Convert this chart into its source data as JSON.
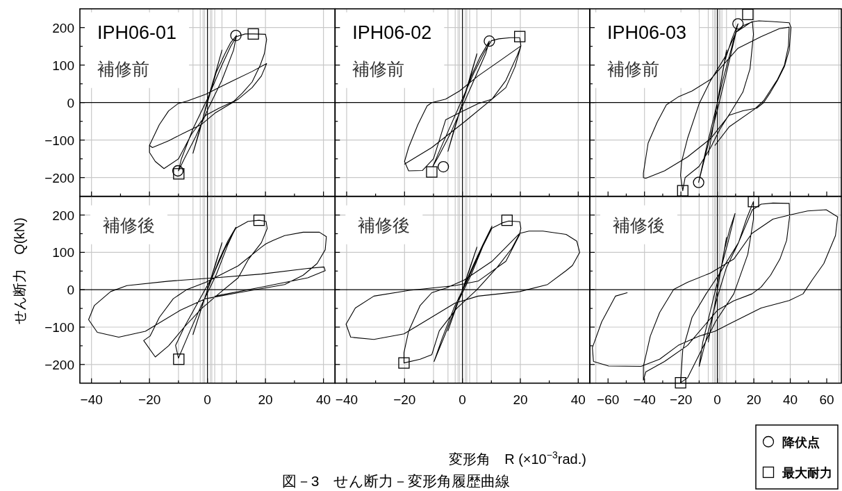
{
  "chart_data": [
    {
      "type": "line",
      "title": "IPH06-01",
      "ylabel": "せん断力　Q(kN)",
      "annotations": [
        "補修前"
      ],
      "xlim": [
        -44,
        44
      ],
      "ylim": [
        -250,
        250
      ],
      "xticks": [
        -40,
        {
          "value": -30,
          "label": null
        },
        -20,
        {
          "value": -10,
          "label": null
        },
        0,
        {
          "value": 10,
          "label": null
        },
        20,
        {
          "value": 30,
          "label": null
        },
        40
      ],
      "yticks": [
        -200,
        {
          "value": -150,
          "label": null
        },
        -100,
        {
          "value": -50,
          "label": null
        },
        0,
        {
          "value": 50,
          "label": null
        },
        100,
        {
          "value": 150,
          "label": null
        },
        200
      ],
      "tick_labels": "y",
      "ref_lines": [
        {
          "axis": "y",
          "value": -200,
          "color": "#c8c8c8"
        },
        {
          "axis": "y",
          "value": -100,
          "color": "#c8c8c8"
        },
        {
          "axis": "y",
          "value": 100,
          "color": "#c8c8c8"
        },
        {
          "axis": "y",
          "value": 200,
          "color": "#c8c8c8"
        },
        {
          "axis": "x",
          "value": -40,
          "color": "#c8c8c8"
        },
        {
          "axis": "x",
          "value": -20,
          "color": "#c8c8c8"
        },
        {
          "axis": "x",
          "value": -10,
          "color": "#c8c8c8"
        },
        {
          "axis": "x",
          "value": -5,
          "color": "#c8c8c8"
        },
        {
          "axis": "x",
          "value": -2.5,
          "color": "#c8c8c8"
        },
        {
          "axis": "x",
          "value": -1.5,
          "color": "#c8c8c8"
        },
        {
          "axis": "x",
          "value": -1,
          "color": "#c8c8c8"
        },
        {
          "axis": "x",
          "value": 1,
          "color": "#c8c8c8"
        },
        {
          "axis": "x",
          "value": 1.5,
          "color": "#c8c8c8"
        },
        {
          "axis": "x",
          "value": 2.5,
          "color": "#c8c8c8"
        },
        {
          "axis": "x",
          "value": 5,
          "color": "#c8c8c8"
        },
        {
          "axis": "x",
          "value": 10,
          "color": "#c8c8c8"
        },
        {
          "axis": "x",
          "value": 20,
          "color": "#c8c8c8"
        },
        {
          "axis": "x",
          "value": 40,
          "color": "#c8c8c8"
        },
        {
          "axis": "x",
          "value": 0,
          "color": "#000000"
        },
        {
          "axis": "y",
          "value": 0,
          "color": "#000000"
        }
      ],
      "series": [
        {
          "type": "line",
          "color": "#000000",
          "x": [
            0,
            2.5,
            5,
            3,
            0,
            -2.5,
            -5,
            -3,
            0,
            3,
            6,
            8,
            10,
            9,
            5,
            0,
            -4,
            -8,
            -10,
            -9,
            -5,
            0,
            5,
            8,
            10,
            13,
            16,
            20,
            20.4,
            19.6,
            18.2,
            15.4,
            12,
            9,
            4,
            -0.6,
            -5.4,
            -10,
            -15,
            -18,
            -20,
            -20,
            -16.6,
            -13.4,
            -10.2,
            -7,
            -0.6,
            4,
            9,
            15.4,
            20.4,
            18.6,
            15.4,
            10.6,
            2.6,
            -2.2,
            -8.6,
            -13.4,
            -19,
            -20
          ],
          "values": [
            0,
            70,
            140,
            85,
            5,
            -70,
            -135,
            -80,
            0,
            80,
            130,
            160,
            179,
            140,
            60,
            -20,
            -90,
            -150,
            -182,
            -150,
            -70,
            10,
            100,
            150,
            176,
            183,
            183,
            182,
            168,
            130,
            100,
            55,
            25,
            3,
            -15,
            -34,
            -83,
            -150,
            -176,
            -157,
            -133,
            -114,
            -59,
            -22,
            -3,
            4,
            22,
            40,
            59,
            83,
            104,
            71,
            40,
            9,
            -28,
            -59,
            -83,
            -102,
            -120,
            -114
          ]
        },
        {
          "type": "scatter",
          "marker": "circle",
          "color": "#000000",
          "x": [
            9.8,
            -10.2
          ],
          "values": [
            179,
            -182
          ]
        },
        {
          "type": "scatter",
          "marker": "square",
          "color": "#000000",
          "x": [
            15.8,
            -9.9
          ],
          "values": [
            183,
            -190
          ]
        }
      ]
    },
    {
      "type": "line",
      "title": "IPH06-02",
      "annotations": [
        "補修前"
      ],
      "xlim": [
        -44,
        44
      ],
      "ylim": [
        -250,
        250
      ],
      "xticks": [
        -40,
        {
          "value": -30,
          "label": null
        },
        -20,
        {
          "value": -10,
          "label": null
        },
        0,
        {
          "value": 10,
          "label": null
        },
        20,
        {
          "value": 30,
          "label": null
        },
        40
      ],
      "yticks": [
        -200,
        {
          "value": -150,
          "label": null
        },
        -100,
        {
          "value": -50,
          "label": null
        },
        0,
        {
          "value": 50,
          "label": null
        },
        100,
        {
          "value": 150,
          "label": null
        },
        200
      ],
      "tick_labels": false,
      "ref_lines": [
        {
          "axis": "y",
          "value": -200,
          "color": "#c8c8c8"
        },
        {
          "axis": "y",
          "value": -100,
          "color": "#c8c8c8"
        },
        {
          "axis": "y",
          "value": 100,
          "color": "#c8c8c8"
        },
        {
          "axis": "y",
          "value": 200,
          "color": "#c8c8c8"
        },
        {
          "axis": "x",
          "value": -40,
          "color": "#c8c8c8"
        },
        {
          "axis": "x",
          "value": -20,
          "color": "#c8c8c8"
        },
        {
          "axis": "x",
          "value": -10,
          "color": "#c8c8c8"
        },
        {
          "axis": "x",
          "value": -5,
          "color": "#c8c8c8"
        },
        {
          "axis": "x",
          "value": -2.5,
          "color": "#c8c8c8"
        },
        {
          "axis": "x",
          "value": -1.5,
          "color": "#c8c8c8"
        },
        {
          "axis": "x",
          "value": -1,
          "color": "#c8c8c8"
        },
        {
          "axis": "x",
          "value": 1,
          "color": "#c8c8c8"
        },
        {
          "axis": "x",
          "value": 1.5,
          "color": "#c8c8c8"
        },
        {
          "axis": "x",
          "value": 2.5,
          "color": "#c8c8c8"
        },
        {
          "axis": "x",
          "value": 5,
          "color": "#c8c8c8"
        },
        {
          "axis": "x",
          "value": 10,
          "color": "#c8c8c8"
        },
        {
          "axis": "x",
          "value": 20,
          "color": "#c8c8c8"
        },
        {
          "axis": "x",
          "value": 40,
          "color": "#c8c8c8"
        },
        {
          "axis": "x",
          "value": 0,
          "color": "#000000"
        },
        {
          "axis": "y",
          "value": 0,
          "color": "#000000"
        }
      ],
      "series": [
        {
          "type": "line",
          "color": "#000000",
          "x": [
            0,
            2.5,
            5,
            3,
            0,
            -2.5,
            -5,
            -3,
            0,
            3,
            6,
            9.3,
            8,
            4,
            0,
            -4,
            -8,
            -10.2,
            -8,
            -4,
            0,
            4,
            8,
            10,
            12.6,
            16.6,
            19.8,
            20.2,
            18.2,
            15,
            10.2,
            5.4,
            -0.5,
            -5.8,
            -10,
            -13.8,
            -18.6,
            -20,
            -18.6,
            -15.4,
            -12.2,
            -10.6,
            -5.8,
            -1,
            5.4,
            13.4,
            20.2,
            19,
            15,
            10.2,
            0.6,
            -10.6,
            -20
          ],
          "values": [
            0,
            65,
            130,
            75,
            0,
            -65,
            -130,
            -75,
            0,
            70,
            120,
            164,
            130,
            60,
            -10,
            -80,
            -140,
            -170,
            -130,
            -60,
            10,
            80,
            140,
            165,
            170,
            173,
            173,
            151,
            96,
            40,
            9,
            -3,
            -25,
            -46,
            -150,
            -181,
            -182,
            -157,
            -120,
            -59,
            -9,
            0,
            9,
            31,
            71,
            114,
            151,
            127,
            59,
            9,
            -52,
            -120,
            -164
          ]
        },
        {
          "type": "scatter",
          "marker": "circle",
          "color": "#000000",
          "x": [
            9.3,
            -6.6
          ],
          "values": [
            164,
            -171
          ]
        },
        {
          "type": "scatter",
          "marker": "square",
          "color": "#000000",
          "x": [
            19.8,
            -10.6
          ],
          "values": [
            176,
            -185
          ]
        }
      ]
    },
    {
      "type": "line",
      "title": "IPH06-03",
      "annotations": [
        "補修前"
      ],
      "xlim": [
        -70,
        68
      ],
      "ylim": [
        -250,
        250
      ],
      "xticks": [
        -60,
        {
          "value": -50,
          "label": null
        },
        -40,
        {
          "value": -30,
          "label": null
        },
        -20,
        {
          "value": -10,
          "label": null
        },
        0,
        {
          "value": 10,
          "label": null
        },
        20,
        {
          "value": 30,
          "label": null
        },
        40,
        {
          "value": 50,
          "label": null
        },
        60
      ],
      "yticks": [
        -200,
        {
          "value": -150,
          "label": null
        },
        -100,
        {
          "value": -50,
          "label": null
        },
        0,
        {
          "value": 50,
          "label": null
        },
        100,
        {
          "value": 150,
          "label": null
        },
        200
      ],
      "tick_labels": false,
      "legend": "bottom right",
      "ref_lines": [
        {
          "axis": "y",
          "value": -200,
          "color": "#c8c8c8"
        },
        {
          "axis": "y",
          "value": -100,
          "color": "#c8c8c8"
        },
        {
          "axis": "y",
          "value": 100,
          "color": "#c8c8c8"
        },
        {
          "axis": "y",
          "value": 200,
          "color": "#c8c8c8"
        },
        {
          "axis": "x",
          "value": -66.7,
          "color": "#c8c8c8"
        },
        {
          "axis": "x",
          "value": 66.7,
          "color": "#c8c8c8"
        },
        {
          "axis": "x",
          "value": -40,
          "color": "#c8c8c8"
        },
        {
          "axis": "x",
          "value": -20,
          "color": "#c8c8c8"
        },
        {
          "axis": "x",
          "value": -10,
          "color": "#c8c8c8"
        },
        {
          "axis": "x",
          "value": -5,
          "color": "#c8c8c8"
        },
        {
          "axis": "x",
          "value": -2.5,
          "color": "#c8c8c8"
        },
        {
          "axis": "x",
          "value": -1.5,
          "color": "#c8c8c8"
        },
        {
          "axis": "x",
          "value": -1,
          "color": "#c8c8c8"
        },
        {
          "axis": "x",
          "value": 1,
          "color": "#c8c8c8"
        },
        {
          "axis": "x",
          "value": 1.5,
          "color": "#c8c8c8"
        },
        {
          "axis": "x",
          "value": 2.5,
          "color": "#c8c8c8"
        },
        {
          "axis": "x",
          "value": 5,
          "color": "#c8c8c8"
        },
        {
          "axis": "x",
          "value": 10,
          "color": "#c8c8c8"
        },
        {
          "axis": "x",
          "value": 20,
          "color": "#c8c8c8"
        },
        {
          "axis": "x",
          "value": 40,
          "color": "#c8c8c8"
        },
        {
          "axis": "x",
          "value": 0,
          "color": "#000000"
        },
        {
          "axis": "y",
          "value": 0,
          "color": "#000000"
        }
      ],
      "series": [
        {
          "type": "line",
          "color": "#000000",
          "x": [
            0,
            2.5,
            5,
            2.5,
            0,
            -2.5,
            -5,
            -2.5,
            0,
            4,
            8,
            11.3,
            8,
            3,
            -2,
            -6,
            -10.3,
            -6,
            0,
            4,
            10.3,
            14,
            18,
            19.2,
            19.8,
            17.9,
            14,
            7.8,
            1.4,
            -3.7,
            -10,
            -17.7,
            -19,
            -20.2,
            -19.6,
            -16.4,
            -10,
            -3.7,
            4,
            10.3,
            18,
            20,
            22.8,
            30,
            39.4,
            40.4,
            39.4,
            36.8,
            33,
            29.2,
            25.4,
            21.6,
            14,
            6.4,
            -3.7,
            -16.4,
            -29,
            -39.3,
            -40.6,
            -40.6,
            -38,
            -33,
            -28,
            -21.5,
            -13.9,
            -3.7,
            11.3,
            24,
            34,
            39.4,
            39,
            36.8,
            33,
            25.4,
            20.3,
            6.4,
            -1.3
          ],
          "values": [
            0,
            70,
            140,
            70,
            0,
            -70,
            -140,
            -70,
            0,
            110,
            170,
            210,
            150,
            60,
            -40,
            -120,
            -213,
            -130,
            -20,
            60,
            188,
            205,
            213,
            216,
            182,
            90,
            28,
            -22,
            -71,
            -120,
            -170,
            -200,
            -235,
            -194,
            -157,
            -96,
            -3,
            59,
            120,
            188,
            213,
            216,
            218,
            216,
            213,
            200,
            140,
            96,
            59,
            28,
            0,
            -15,
            -22,
            -34,
            -96,
            -145,
            -182,
            -202,
            -200,
            -188,
            -108,
            -52,
            -6,
            15,
            31,
            62,
            145,
            176,
            197,
            201,
            151,
            100,
            62,
            5,
            -18,
            -65,
            -114
          ]
        },
        {
          "type": "scatter",
          "name": "降伏点",
          "marker": "circle",
          "color": "#000000",
          "x": [
            11.3,
            -10.3
          ],
          "values": [
            210,
            -213
          ]
        },
        {
          "type": "scatter",
          "name": "最大耐力",
          "marker": "square",
          "color": "#000000",
          "x": [
            16.7,
            -19
          ],
          "values": [
            235,
            -235
          ]
        }
      ]
    },
    {
      "type": "line",
      "annotations": [
        "補修後"
      ],
      "xlim": [
        -44,
        44
      ],
      "ylim": [
        -250,
        250
      ],
      "xticks": [
        -40,
        {
          "value": -30,
          "label": null
        },
        -20,
        {
          "value": -10,
          "label": null
        },
        0,
        {
          "value": 10,
          "label": null
        },
        20,
        {
          "value": 30,
          "label": null
        },
        40
      ],
      "yticks": [
        -200,
        {
          "value": -150,
          "label": null
        },
        -100,
        {
          "value": -50,
          "label": null
        },
        0,
        {
          "value": 50,
          "label": null
        },
        100,
        {
          "value": 150,
          "label": null
        },
        200
      ],
      "ref_lines": [
        {
          "axis": "y",
          "value": -200,
          "color": "#c8c8c8"
        },
        {
          "axis": "y",
          "value": -100,
          "color": "#c8c8c8"
        },
        {
          "axis": "y",
          "value": 100,
          "color": "#c8c8c8"
        },
        {
          "axis": "y",
          "value": 200,
          "color": "#c8c8c8"
        },
        {
          "axis": "x",
          "value": -40,
          "color": "#c8c8c8"
        },
        {
          "axis": "x",
          "value": -20,
          "color": "#c8c8c8"
        },
        {
          "axis": "x",
          "value": -10,
          "color": "#c8c8c8"
        },
        {
          "axis": "x",
          "value": -5,
          "color": "#c8c8c8"
        },
        {
          "axis": "x",
          "value": -2.5,
          "color": "#c8c8c8"
        },
        {
          "axis": "x",
          "value": -1.5,
          "color": "#c8c8c8"
        },
        {
          "axis": "x",
          "value": -1,
          "color": "#c8c8c8"
        },
        {
          "axis": "x",
          "value": 1,
          "color": "#c8c8c8"
        },
        {
          "axis": "x",
          "value": 1.5,
          "color": "#c8c8c8"
        },
        {
          "axis": "x",
          "value": 2.5,
          "color": "#c8c8c8"
        },
        {
          "axis": "x",
          "value": 5,
          "color": "#c8c8c8"
        },
        {
          "axis": "x",
          "value": 10,
          "color": "#c8c8c8"
        },
        {
          "axis": "x",
          "value": 20,
          "color": "#c8c8c8"
        },
        {
          "axis": "x",
          "value": 40,
          "color": "#c8c8c8"
        },
        {
          "axis": "x",
          "value": 0,
          "color": "#000000"
        },
        {
          "axis": "y",
          "value": 0,
          "color": "#000000"
        }
      ],
      "series": [
        {
          "type": "line",
          "color": "#000000",
          "x": [
            0,
            2.5,
            5,
            2.5,
            0,
            -2.5,
            -5,
            -2.5,
            0,
            4,
            7,
            9.8,
            7,
            3,
            -2,
            -6,
            -10,
            -11,
            -8,
            -3,
            2,
            6,
            9.8,
            14,
            17.8,
            20.2,
            20.6,
            18.6,
            14,
            10.6,
            4,
            -2,
            -8,
            -13.4,
            -18,
            -22,
            -19.8,
            -16.6,
            -11.8,
            -7,
            -0.6,
            10.6,
            18.6,
            20.2,
            22.6,
            26.6,
            33,
            38.6,
            41,
            40.6,
            37.8,
            33,
            26.6,
            10.6,
            -0.6,
            -9.4,
            -21.4,
            -30.6,
            -38,
            -41,
            -39,
            -33.4,
            -27.8,
            -13.4,
            2.6,
            18.6,
            34.6,
            40.2,
            40.6,
            34.6,
            18.6,
            2.6
          ],
          "values": [
            0,
            63,
            126,
            60,
            0,
            -60,
            -120,
            -60,
            0,
            80,
            130,
            167,
            120,
            40,
            -40,
            -110,
            -183,
            -149,
            -100,
            -30,
            40,
            110,
            165,
            183,
            186,
            183,
            164,
            126,
            80,
            32,
            -10,
            -50,
            -100,
            -150,
            -180,
            -136,
            -124,
            -74,
            -24,
            1,
            20,
            64,
            114,
            123,
            132,
            145,
            154,
            154,
            142,
            107,
            70,
            39,
            14,
            -8,
            -24,
            -55,
            -111,
            -127,
            -114,
            -80,
            -42,
            -5,
            11,
            23,
            32,
            42,
            57,
            61,
            51,
            32,
            7,
            -17
          ]
        },
        {
          "type": "scatter",
          "marker": "square",
          "color": "#000000",
          "x": [
            17.8,
            -9.9
          ],
          "values": [
            186,
            -186
          ]
        }
      ]
    },
    {
      "type": "line",
      "xlabel": "変形角　R (×10$^{−3}$rad.)",
      "annotations": [
        "補修後",
        "図－3　せん断力－変形角履歴曲線"
      ],
      "xlim": [
        -44,
        44
      ],
      "ylim": [
        -250,
        250
      ],
      "xticks": [
        -40,
        {
          "value": -30,
          "label": null
        },
        -20,
        {
          "value": -10,
          "label": null
        },
        0,
        {
          "value": 10,
          "label": null
        },
        20,
        {
          "value": 30,
          "label": null
        },
        40
      ],
      "yticks": [
        -200,
        {
          "value": -150,
          "label": null
        },
        -100,
        {
          "value": -50,
          "label": null
        },
        0,
        {
          "value": 50,
          "label": null
        },
        100,
        {
          "value": 150,
          "label": null
        },
        200
      ],
      "tick_labels": "x",
      "ref_lines": [
        {
          "axis": "y",
          "value": -200,
          "color": "#c8c8c8"
        },
        {
          "axis": "y",
          "value": -100,
          "color": "#c8c8c8"
        },
        {
          "axis": "y",
          "value": 100,
          "color": "#c8c8c8"
        },
        {
          "axis": "y",
          "value": 200,
          "color": "#c8c8c8"
        },
        {
          "axis": "x",
          "value": -40,
          "color": "#c8c8c8"
        },
        {
          "axis": "x",
          "value": -20,
          "color": "#c8c8c8"
        },
        {
          "axis": "x",
          "value": -10,
          "color": "#c8c8c8"
        },
        {
          "axis": "x",
          "value": -5,
          "color": "#c8c8c8"
        },
        {
          "axis": "x",
          "value": -2.5,
          "color": "#c8c8c8"
        },
        {
          "axis": "x",
          "value": -1.5,
          "color": "#c8c8c8"
        },
        {
          "axis": "x",
          "value": -1,
          "color": "#c8c8c8"
        },
        {
          "axis": "x",
          "value": 1,
          "color": "#c8c8c8"
        },
        {
          "axis": "x",
          "value": 1.5,
          "color": "#c8c8c8"
        },
        {
          "axis": "x",
          "value": 2.5,
          "color": "#c8c8c8"
        },
        {
          "axis": "x",
          "value": 5,
          "color": "#c8c8c8"
        },
        {
          "axis": "x",
          "value": 10,
          "color": "#c8c8c8"
        },
        {
          "axis": "x",
          "value": 20,
          "color": "#c8c8c8"
        },
        {
          "axis": "x",
          "value": 40,
          "color": "#c8c8c8"
        },
        {
          "axis": "x",
          "value": 0,
          "color": "#000000"
        },
        {
          "axis": "y",
          "value": 0,
          "color": "#000000"
        }
      ],
      "series": [
        {
          "type": "line",
          "color": "#000000",
          "x": [
            0,
            2.5,
            5,
            2.5,
            0,
            -2.5,
            -5,
            -2.5,
            0,
            4,
            7,
            10.2,
            7,
            3,
            -2,
            -6,
            -9.8,
            -7,
            -3,
            2,
            6,
            10.2,
            13.8,
            16,
            19.8,
            20.2,
            19.8,
            17,
            12,
            5,
            -2,
            -8,
            -10.6,
            -14.6,
            -20.2,
            -20.2,
            -18.6,
            -14.6,
            -10.6,
            -5.8,
            0.6,
            10.2,
            19.8,
            23,
            27.8,
            35.8,
            39.5,
            40.5,
            38,
            35.8,
            29.4,
            19.8,
            5.4,
            -2.6,
            -14.6,
            -20.2,
            -30.6,
            -38.6,
            -40.2,
            -37,
            -30.6,
            -18.6,
            -2.6,
            5.4,
            15,
            19.8
          ],
          "values": [
            0,
            57,
            114,
            55,
            0,
            -55,
            -110,
            -55,
            0,
            70,
            120,
            170,
            115,
            40,
            -40,
            -120,
            -192,
            -130,
            -50,
            30,
            100,
            165,
            179,
            184,
            182,
            164,
            151,
            110,
            60,
            0,
            -50,
            -110,
            -174,
            -186,
            -196,
            -168,
            -111,
            -42,
            -8,
            4,
            26,
            76,
            151,
            157,
            157,
            148,
            130,
            100,
            65,
            51,
            14,
            -5,
            -17,
            -36,
            -92,
            -118,
            -133,
            -127,
            -92,
            -49,
            -17,
            -2,
            11,
            23,
            76,
            148
          ]
        },
        {
          "type": "scatter",
          "marker": "square",
          "color": "#000000",
          "x": [
            15.4,
            -20.2
          ],
          "values": [
            186,
            -196
          ]
        }
      ]
    },
    {
      "type": "line",
      "annotations": [
        "補修後"
      ],
      "xlim": [
        -70,
        68
      ],
      "ylim": [
        -250,
        250
      ],
      "xticks": [
        -60,
        {
          "value": -50,
          "label": null
        },
        -40,
        {
          "value": -30,
          "label": null
        },
        -20,
        {
          "value": -10,
          "label": null
        },
        0,
        {
          "value": 10,
          "label": null
        },
        20,
        {
          "value": 30,
          "label": null
        },
        40,
        {
          "value": 50,
          "label": null
        },
        60
      ],
      "yticks": [
        -200,
        {
          "value": -150,
          "label": null
        },
        -100,
        {
          "value": -50,
          "label": null
        },
        0,
        {
          "value": 50,
          "label": null
        },
        100,
        {
          "value": 150,
          "label": null
        },
        200
      ],
      "tick_labels": "x",
      "ref_lines": [
        {
          "axis": "y",
          "value": -200,
          "color": "#c8c8c8"
        },
        {
          "axis": "y",
          "value": -100,
          "color": "#c8c8c8"
        },
        {
          "axis": "y",
          "value": 100,
          "color": "#c8c8c8"
        },
        {
          "axis": "y",
          "value": 200,
          "color": "#c8c8c8"
        },
        {
          "axis": "x",
          "value": -66.7,
          "color": "#c8c8c8"
        },
        {
          "axis": "x",
          "value": 66.7,
          "color": "#c8c8c8"
        },
        {
          "axis": "x",
          "value": -40,
          "color": "#c8c8c8"
        },
        {
          "axis": "x",
          "value": -20,
          "color": "#c8c8c8"
        },
        {
          "axis": "x",
          "value": -10,
          "color": "#c8c8c8"
        },
        {
          "axis": "x",
          "value": -5,
          "color": "#c8c8c8"
        },
        {
          "axis": "x",
          "value": -2.5,
          "color": "#c8c8c8"
        },
        {
          "axis": "x",
          "value": -1.5,
          "color": "#c8c8c8"
        },
        {
          "axis": "x",
          "value": -1,
          "color": "#c8c8c8"
        },
        {
          "axis": "x",
          "value": 1,
          "color": "#c8c8c8"
        },
        {
          "axis": "x",
          "value": 1.5,
          "color": "#c8c8c8"
        },
        {
          "axis": "x",
          "value": 2.5,
          "color": "#c8c8c8"
        },
        {
          "axis": "x",
          "value": 5,
          "color": "#c8c8c8"
        },
        {
          "axis": "x",
          "value": 10,
          "color": "#c8c8c8"
        },
        {
          "axis": "x",
          "value": 20,
          "color": "#c8c8c8"
        },
        {
          "axis": "x",
          "value": 40,
          "color": "#c8c8c8"
        },
        {
          "axis": "x",
          "value": 0,
          "color": "#000000"
        },
        {
          "axis": "y",
          "value": 0,
          "color": "#000000"
        }
      ],
      "series": [
        {
          "type": "line",
          "color": "#000000",
          "x": [
            0,
            2.5,
            5,
            2.5,
            0,
            -2.5,
            -5,
            -2.5,
            0,
            4,
            7,
            9.7,
            6,
            1,
            -4,
            -8,
            -10,
            -6,
            0,
            5,
            11.6,
            16,
            19.8,
            19.8,
            16.7,
            9,
            -1.1,
            -10,
            -16.4,
            -20.2,
            -19,
            -13.9,
            -6.2,
            1.4,
            11.6,
            19.2,
            24,
            30.5,
            39.4,
            39.6,
            38,
            34.3,
            29.2,
            24,
            19,
            8.9,
            0,
            -16.4,
            -29,
            -39.3,
            -40.6,
            -40.6,
            -36.8,
            -31.7,
            -24,
            -16.4,
            -3.7,
            9,
            19,
            30.5,
            40.6,
            49.5,
            59.7,
            66,
            64.8,
            58.4,
            52,
            47,
            39.4,
            24,
            6.3,
            -1.3,
            -10,
            -21.5,
            -31.7,
            -41.9,
            -59.7,
            -68,
            -68.6,
            -63.5,
            -55.9,
            -49.5
          ],
          "values": [
            0,
            70,
            140,
            70,
            0,
            -70,
            -140,
            -70,
            0,
            110,
            165,
            204,
            130,
            40,
            -60,
            -140,
            -205,
            -130,
            -20,
            60,
            126,
            190,
            236,
            189,
            95,
            -11,
            -86,
            -174,
            -236,
            -249,
            -161,
            -74,
            -11,
            45,
            126,
            214,
            229,
            232,
            231,
            195,
            132,
            82,
            39,
            7,
            -11,
            -30,
            -55,
            -149,
            -192,
            -220,
            -242,
            -205,
            -124,
            -61,
            1,
            20,
            45,
            82,
            151,
            189,
            201,
            211,
            214,
            195,
            145,
            70,
            26,
            -11,
            -29,
            -49,
            -92,
            -111,
            -124,
            -149,
            -186,
            -205,
            -204,
            -192,
            -155,
            -86,
            -17,
            -8
          ]
        },
        {
          "type": "scatter",
          "marker": "square",
          "color": "#000000",
          "x": [
            19.8,
            -20.2
          ],
          "values": [
            236,
            -249
          ]
        }
      ]
    }
  ]
}
